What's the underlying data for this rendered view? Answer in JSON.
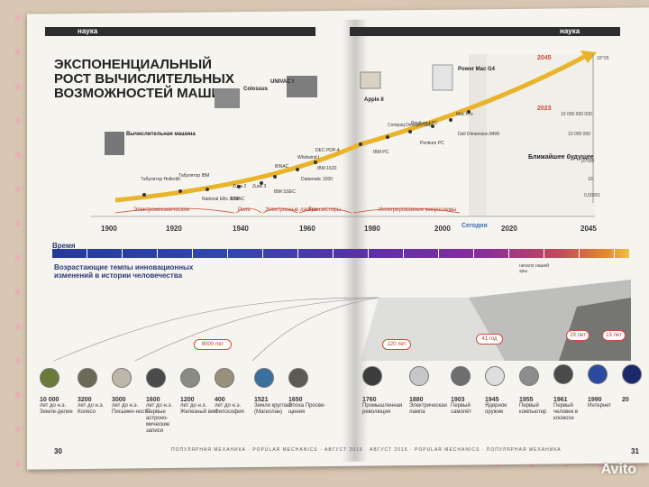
{
  "header": {
    "left_tag": "наука",
    "right_tag": "наука"
  },
  "title": "ЭКСПОНЕНЦИАЛЬНЫЙ РОСТ ВЫЧИСЛИТЕЛЬНЫХ ВОЗМОЖНОСТЕЙ МАШИН",
  "years": [
    "1900",
    "1920",
    "1940",
    "1960",
    "1980",
    "2000",
    "2020",
    "2045"
  ],
  "machines": [
    {
      "name": "Вычислительная машина"
    },
    {
      "name": "Colossus"
    },
    {
      "name": "UNIVAC I"
    },
    {
      "name": "Apple II"
    },
    {
      "name": "Power Mac G4"
    }
  ],
  "small_labels": [
    "Табулятор Hollerith",
    "Табулятор IBM",
    "National Ellis 3000",
    "ENIAC",
    "Zuse 2",
    "Zuse 3",
    "BINAC",
    "IBM SSEC",
    "Whirlwind I",
    "DEC PDP-4",
    "IBM 1620",
    "Datamatic 1000",
    "IBM PC",
    "Compaq Deskpro 386",
    "Pentium I PC",
    "Pentium PC",
    "Mac Pro",
    "Dell Dimension 8400"
  ],
  "eras": [
    "Электромеханические",
    "Реле",
    "Электронные лампы",
    "Транзисторы",
    "Интегрированные микросхемы",
    "Сегодня"
  ],
  "future_label": "Ближайшее будущее",
  "future_points": [
    "2045",
    "2023"
  ],
  "y_ticks": [
    "10^26",
    "10 000 000 000",
    "10 000 000",
    "10 000",
    "10",
    "0,00001"
  ],
  "timeline_label": "Время",
  "timeline_note": "начало нашей эры",
  "section_title": "Возрастающие темпы инновационных изменений в истории человечества",
  "intervals": [
    "8000 лет",
    "120 лет",
    "41 год",
    "29 лет",
    "15 лет"
  ],
  "events": [
    {
      "year": "10 000",
      "text": "лет до н.э. Земле-делие"
    },
    {
      "year": "3200",
      "text": "лет до н.э. Колесо"
    },
    {
      "year": "3000",
      "text": "лет до н.э. Письмен-ность"
    },
    {
      "year": "1600",
      "text": "лет до н.э. Первые астроно-мические записи"
    },
    {
      "year": "1200",
      "text": "лет до н.э. Железный век"
    },
    {
      "year": "400",
      "text": "лет до н.э. Философия"
    },
    {
      "year": "1521",
      "text": "Земля круглая (Магеллан)"
    },
    {
      "year": "1650",
      "text": "Эпоха Просве-щения"
    },
    {
      "year": "1760",
      "text": "Промышленная революция"
    },
    {
      "year": "1880",
      "text": "Электрическая лампа"
    },
    {
      "year": "1903",
      "text": "Первый самолёт"
    },
    {
      "year": "1945",
      "text": "Ядерное оружие"
    },
    {
      "year": "1955",
      "text": "Первый компьютер"
    },
    {
      "year": "1961",
      "text": "Первый человек в космосе"
    },
    {
      "year": "1990",
      "text": "Интернет"
    },
    {
      "year": "20",
      "text": ""
    }
  ],
  "footer": {
    "left_page": "30",
    "right_page": "31",
    "left_text": "ПОПУЛЯРНАЯ МЕХАНИКА · POPULAR MECHANICS · АВГУСТ 2016",
    "right_text": "АВГУСТ 2016 · POPULAR MECHANICS · ПОПУЛЯРНАЯ МЕХАНИКА"
  },
  "watermark": "Avito",
  "colors": {
    "accent": "#e9b32a",
    "band_dark": "#2b3a8c",
    "pill_red": "#d34a36"
  }
}
